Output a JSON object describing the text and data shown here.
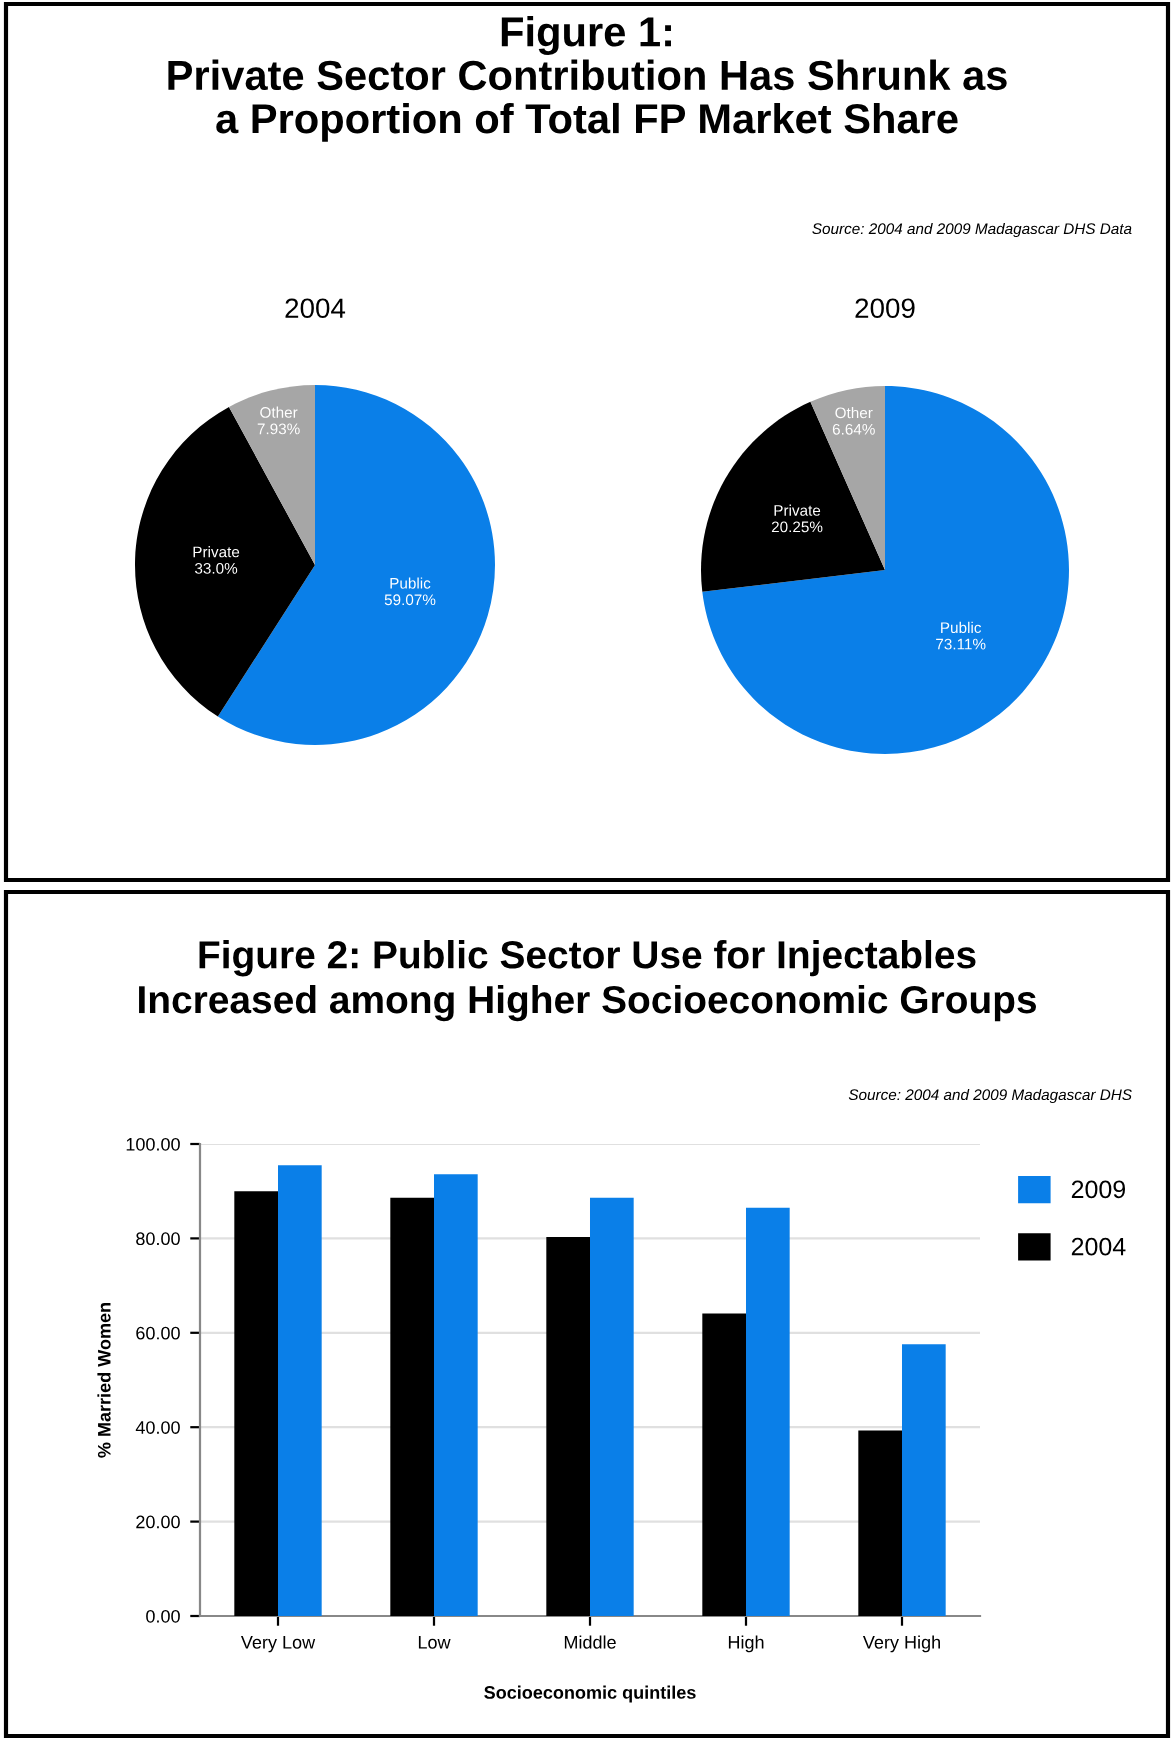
{
  "chart_data": [
    {
      "type": "pie",
      "title": "2004",
      "annotations": [
        "Figure 1:\nPrivate Sector Contribution Has Shrunk as\na Proportion of Total FP Market Share",
        "Source: 2004 and 2009 Madagascar DHS Data"
      ],
      "categories": [
        "Public",
        "Private",
        "Other"
      ],
      "values": [
        59.07,
        33.0,
        7.93
      ],
      "value_labels": [
        "59.07%",
        "33.0%",
        "7.93%"
      ],
      "colors": [
        "#0a7fe8",
        "#000000",
        "#a6a6a6"
      ]
    },
    {
      "type": "pie",
      "title": "2009",
      "categories": [
        "Public",
        "Private",
        "Other"
      ],
      "values": [
        73.11,
        20.25,
        6.64
      ],
      "value_labels": [
        "73.11%",
        "20.25%",
        "6.64%"
      ],
      "colors": [
        "#0a7fe8",
        "#000000",
        "#a6a6a6"
      ]
    },
    {
      "type": "bar",
      "title": "Figure 2: Public Sector Use for Injectables\nIncreased among Higher Socioeconomic Groups",
      "annotations": [
        "Source: 2004 and 2009 Madagascar DHS"
      ],
      "xlabel": "Socioeconomic quintiles",
      "ylabel": "% Married Women",
      "categories": [
        "Very Low",
        "Low",
        "Middle",
        "High",
        "Very High"
      ],
      "series": [
        {
          "name": "2004",
          "color": "#000000",
          "values": [
            90.0,
            88.6,
            80.3,
            64.1,
            39.3
          ]
        },
        {
          "name": "2009",
          "color": "#0a7fe8",
          "values": [
            95.5,
            93.6,
            88.6,
            86.5,
            57.6
          ]
        }
      ],
      "ylim": [
        0,
        100
      ],
      "yticks": [
        {
          "value": 0,
          "label": "0.00"
        },
        {
          "value": 20,
          "label": "20.00"
        },
        {
          "value": 40,
          "label": "40.00"
        },
        {
          "value": 60,
          "label": "60.00"
        },
        {
          "value": 80,
          "label": "80.00"
        },
        {
          "value": 100,
          "label": "100.00"
        }
      ],
      "grid": "y",
      "legend": "right"
    }
  ]
}
